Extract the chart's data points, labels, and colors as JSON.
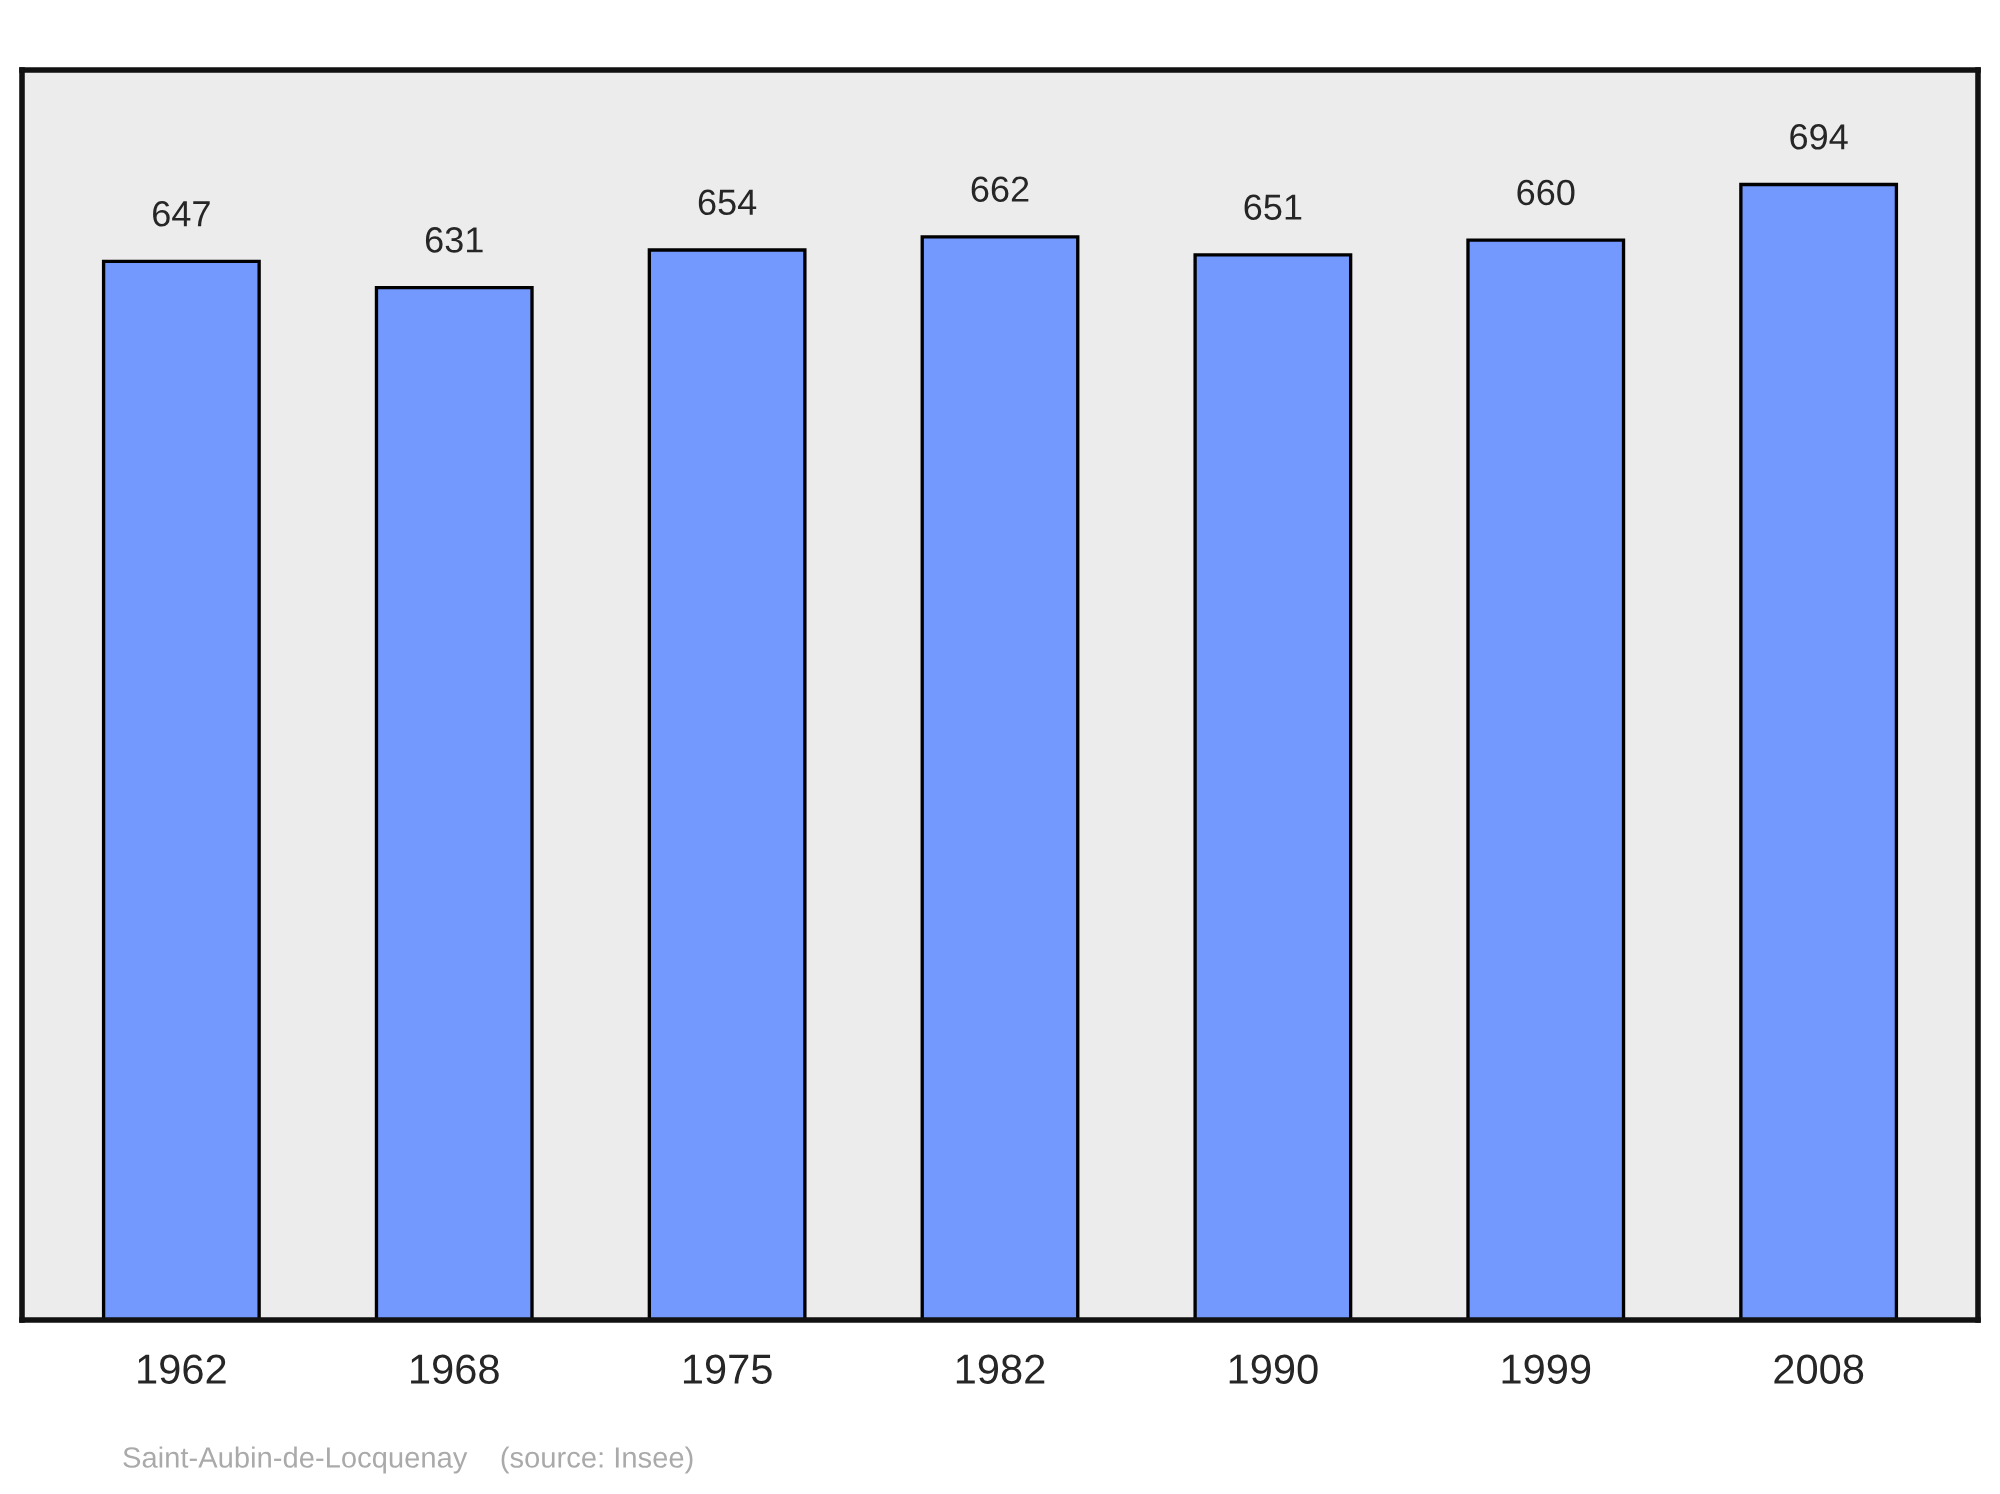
{
  "chart_data": {
    "type": "bar",
    "categories": [
      "1962",
      "1968",
      "1975",
      "1982",
      "1990",
      "1999",
      "2008"
    ],
    "values": [
      647,
      631,
      654,
      662,
      651,
      660,
      694
    ],
    "color": "#7399ff",
    "data_labels": true,
    "ylim": [
      0,
      764
    ],
    "tick_labels": "x",
    "grid": false,
    "legend": false,
    "annotations": [
      "Saint-Aubin-de-Locquenay    (source: Insee)"
    ]
  }
}
